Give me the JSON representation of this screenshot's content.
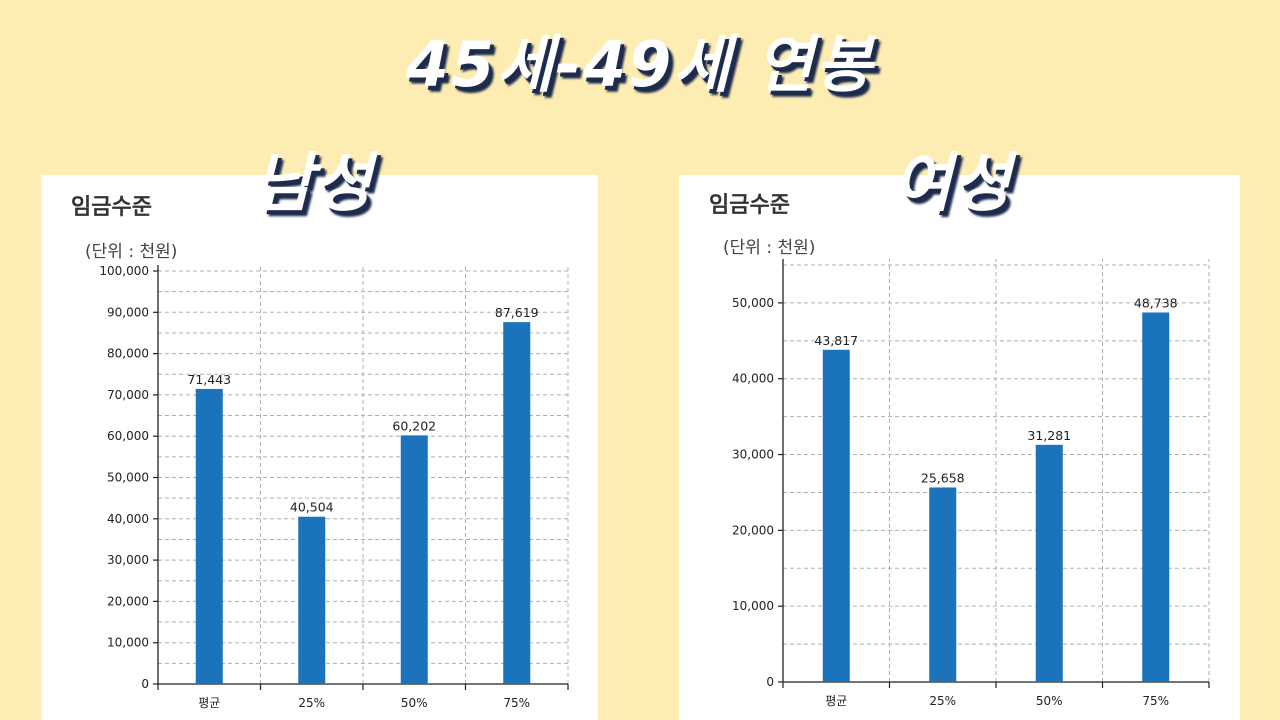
{
  "title": "45세-49세 연봉",
  "colors": {
    "background": "#fdedb3",
    "bar": "#1a73bb",
    "grid": "#b0b0b0"
  },
  "chart_data": [
    {
      "type": "bar",
      "label": "남성",
      "heading": "임금수준",
      "unit": "(단위 : 천원)",
      "categories": [
        "평균",
        "25%",
        "50%",
        "75%"
      ],
      "values": [
        71443,
        40504,
        60202,
        87619
      ],
      "value_labels": [
        "71,443",
        "40,504",
        "60,202",
        "87,619"
      ],
      "ylim": [
        0,
        100000
      ],
      "yticks": [
        0,
        10000,
        20000,
        30000,
        40000,
        50000,
        60000,
        70000,
        80000,
        90000,
        100000
      ],
      "ytick_labels": [
        "0",
        "10,000",
        "20,000",
        "30,000",
        "40,000",
        "50,000",
        "60,000",
        "70,000",
        "80,000",
        "90,000",
        "100,000"
      ],
      "grid": true
    },
    {
      "type": "bar",
      "label": "여성",
      "heading": "임금수준",
      "unit": "(단위 : 천원)",
      "categories": [
        "평균",
        "25%",
        "50%",
        "75%"
      ],
      "values": [
        43817,
        25658,
        31281,
        48738
      ],
      "value_labels": [
        "43,817",
        "25,658",
        "31,281",
        "48,738"
      ],
      "ylim": [
        0,
        55000
      ],
      "yticks": [
        0,
        10000,
        20000,
        30000,
        40000,
        50000
      ],
      "ytick_labels": [
        "0",
        "10,000",
        "20,000",
        "30,000",
        "40,000",
        "50,000"
      ],
      "grid": true
    }
  ]
}
